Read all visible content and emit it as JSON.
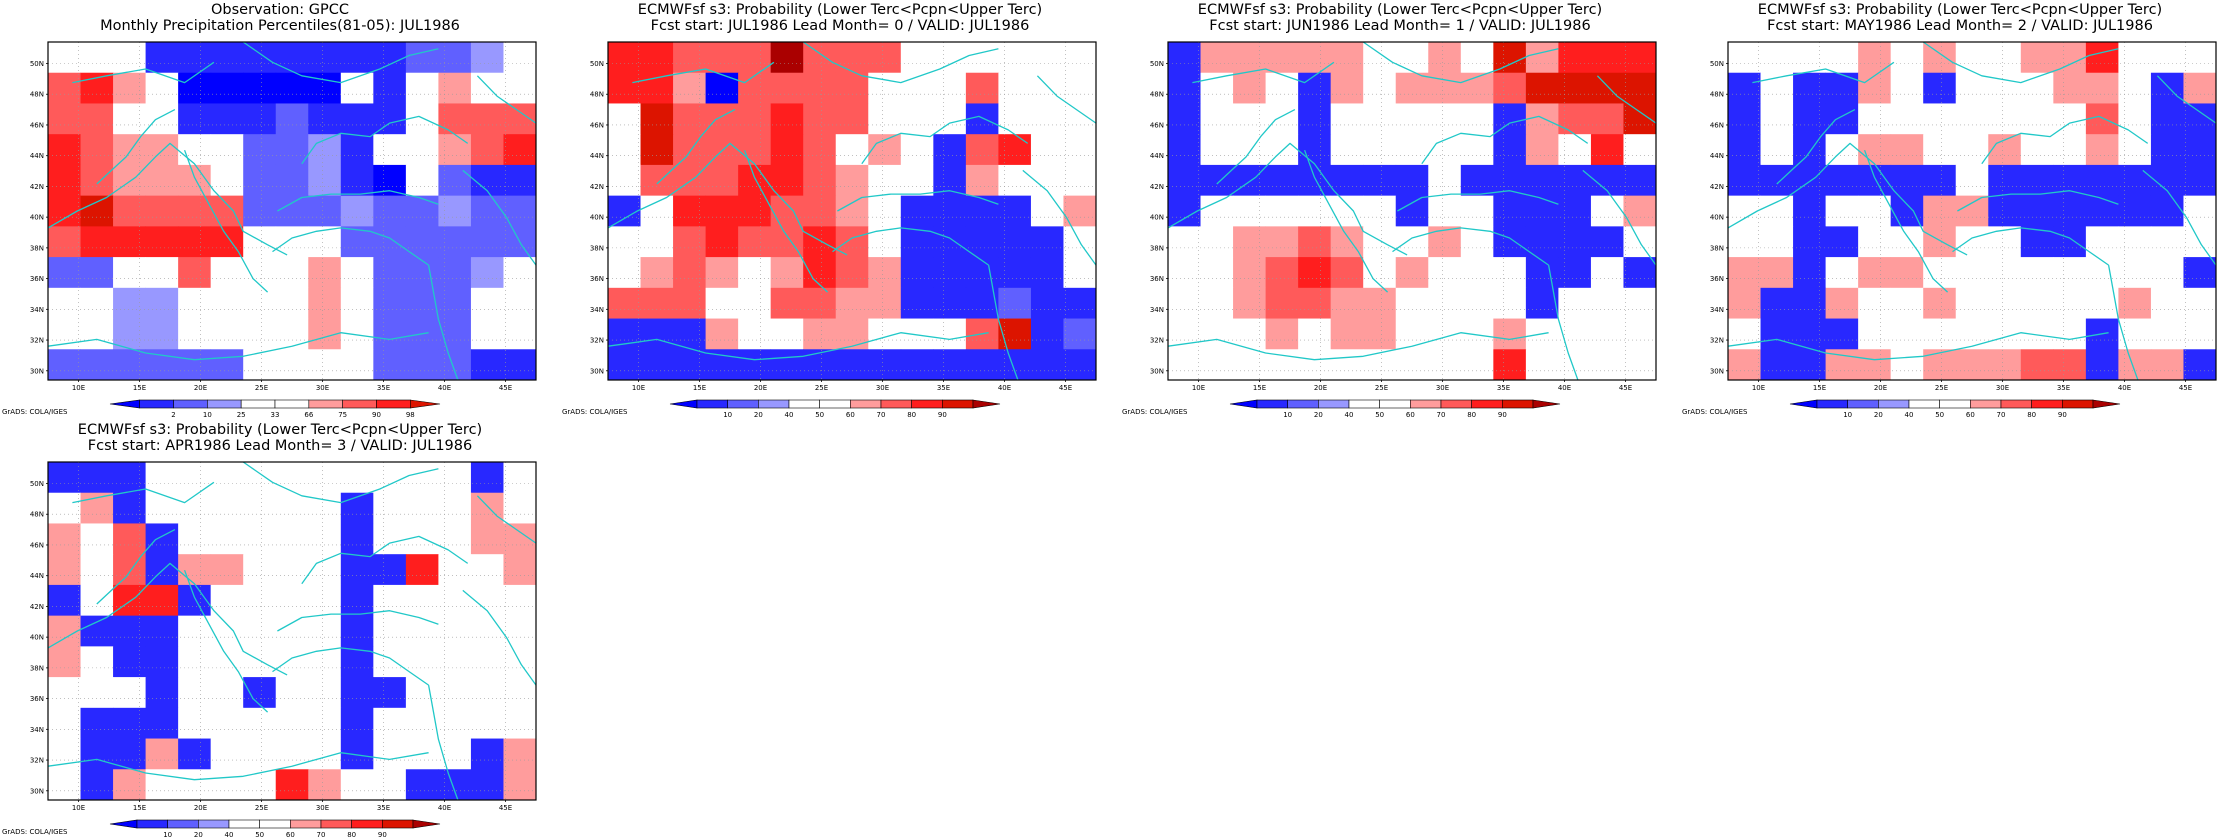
{
  "colors": {
    "coast": "#21c8c8",
    "frame": "#000000",
    "grid": "#9a9a9a",
    "scale": [
      "#0000ff",
      "#2828ff",
      "#6060ff",
      "#9898ff",
      "#ffffff",
      "#ffffff",
      "#ff9c9c",
      "#ff5a5a",
      "#ff1e1e",
      "#dc1400",
      "#aa0000"
    ],
    "cb_forecast": [
      "#0000ff",
      "#2828ff",
      "#6060ff",
      "#9898ff",
      "#ffffff",
      "#ffffff",
      "#ff9c9c",
      "#ff5a5a",
      "#ff1e1e",
      "#dc1400",
      "#aa0000"
    ],
    "cb_obs": [
      "#0000ff",
      "#2828ff",
      "#6060ff",
      "#9898ff",
      "#ffffff",
      "#ffffff",
      "#ff9c9c",
      "#ff5a5a",
      "#ff1e1e",
      "#dc1400"
    ]
  },
  "credit": "GrADS: COLA/IGES",
  "panels": [
    {
      "title_line1": "Observation: GPCC",
      "title_line2": "Monthly Precipitation Percentiles(81-05): JUL1986",
      "colorbar": {
        "kind": "obs",
        "labels": [
          "2",
          "10",
          "25",
          "33",
          "66",
          "75",
          "90",
          "98"
        ]
      },
      "chart_data": {
        "type": "heatmap",
        "x_ticks": [
          "10E",
          "15E",
          "20E",
          "25E",
          "30E",
          "35E",
          "40E",
          "45E"
        ],
        "y_ticks": [
          "30N",
          "32N",
          "34N",
          "36N",
          "38N",
          "40N",
          "42N",
          "44N",
          "46N",
          "48N",
          "50N"
        ],
        "grid": [
          [
            5,
            5,
            5,
            1,
            1,
            1,
            1,
            1,
            1,
            1,
            1,
            2,
            2,
            3,
            5
          ],
          [
            7,
            8,
            6,
            5,
            0,
            0,
            0,
            0,
            0,
            5,
            1,
            5,
            6,
            5,
            4
          ],
          [
            7,
            7,
            5,
            5,
            1,
            1,
            1,
            2,
            1,
            1,
            1,
            5,
            7,
            7,
            7
          ],
          [
            8,
            7,
            6,
            6,
            5,
            5,
            2,
            2,
            3,
            1,
            5,
            5,
            6,
            7,
            8
          ],
          [
            8,
            7,
            6,
            6,
            6,
            5,
            2,
            2,
            3,
            1,
            0,
            5,
            2,
            1,
            1
          ],
          [
            8,
            9,
            7,
            7,
            7,
            7,
            2,
            2,
            2,
            3,
            2,
            2,
            3,
            2,
            2
          ],
          [
            7,
            8,
            8,
            8,
            8,
            8,
            5,
            5,
            5,
            2,
            2,
            2,
            2,
            2,
            2
          ],
          [
            2,
            2,
            5,
            5,
            7,
            5,
            5,
            5,
            6,
            5,
            2,
            2,
            2,
            3,
            5
          ],
          [
            5,
            5,
            3,
            3,
            5,
            5,
            5,
            5,
            6,
            5,
            2,
            2,
            2,
            5,
            5
          ],
          [
            5,
            5,
            3,
            3,
            5,
            5,
            5,
            5,
            6,
            5,
            2,
            2,
            2,
            5,
            5
          ],
          [
            2,
            2,
            2,
            2,
            2,
            2,
            5,
            5,
            5,
            5,
            2,
            2,
            2,
            1,
            1
          ]
        ]
      }
    },
    {
      "title_line1": "ECMWFsf s3: Probability (Lower Terc<Pcpn<Upper Terc)",
      "title_line2": "Fcst start: JUL1986  Lead Month= 0 / VALID: JUL1986",
      "colorbar": {
        "kind": "fcst",
        "labels": [
          "10",
          "20",
          "40",
          "50",
          "60",
          "70",
          "80",
          "90"
        ]
      },
      "chart_data": {
        "type": "heatmap",
        "x_ticks": [
          "10E",
          "15E",
          "20E",
          "25E",
          "30E",
          "35E",
          "40E",
          "45E"
        ],
        "y_ticks": [
          "30N",
          "32N",
          "34N",
          "36N",
          "38N",
          "40N",
          "42N",
          "44N",
          "46N",
          "48N",
          "50N"
        ],
        "grid": [
          [
            8,
            8,
            7,
            7,
            7,
            10,
            7,
            7,
            7,
            5,
            5,
            5,
            5,
            5,
            5
          ],
          [
            8,
            8,
            6,
            0,
            7,
            7,
            7,
            7,
            5,
            5,
            5,
            7,
            5,
            5,
            5
          ],
          [
            5,
            9,
            7,
            7,
            7,
            8,
            7,
            7,
            5,
            5,
            5,
            1,
            5,
            5,
            5
          ],
          [
            5,
            9,
            7,
            7,
            7,
            8,
            7,
            5,
            6,
            5,
            1,
            7,
            8,
            5,
            5
          ],
          [
            5,
            7,
            7,
            7,
            8,
            8,
            7,
            6,
            5,
            5,
            1,
            6,
            5,
            5,
            5
          ],
          [
            1,
            5,
            8,
            8,
            8,
            7,
            7,
            6,
            5,
            1,
            1,
            1,
            1,
            5,
            6
          ],
          [
            5,
            5,
            7,
            8,
            7,
            7,
            8,
            7,
            5,
            1,
            1,
            1,
            1,
            1,
            5
          ],
          [
            5,
            6,
            7,
            6,
            5,
            6,
            8,
            7,
            6,
            1,
            1,
            1,
            1,
            1,
            5
          ],
          [
            7,
            7,
            7,
            5,
            5,
            7,
            7,
            6,
            6,
            1,
            1,
            1,
            2,
            1,
            1
          ],
          [
            1,
            1,
            1,
            6,
            5,
            5,
            6,
            6,
            5,
            5,
            5,
            7,
            9,
            1,
            2
          ],
          [
            1,
            1,
            1,
            1,
            1,
            1,
            1,
            1,
            1,
            1,
            1,
            1,
            1,
            1,
            1
          ]
        ]
      }
    },
    {
      "title_line1": "ECMWFsf s3: Probability (Lower Terc<Pcpn<Upper Terc)",
      "title_line2": "Fcst start: JUN1986  Lead Month= 1 / VALID: JUL1986",
      "colorbar": {
        "kind": "fcst",
        "labels": [
          "10",
          "20",
          "40",
          "50",
          "60",
          "70",
          "80",
          "90"
        ]
      },
      "chart_data": {
        "type": "heatmap",
        "x_ticks": [
          "10E",
          "15E",
          "20E",
          "25E",
          "30E",
          "35E",
          "40E",
          "45E"
        ],
        "y_ticks": [
          "30N",
          "32N",
          "34N",
          "36N",
          "38N",
          "40N",
          "42N",
          "44N",
          "46N",
          "48N",
          "50N"
        ],
        "grid": [
          [
            1,
            6,
            6,
            6,
            6,
            6,
            5,
            5,
            6,
            5,
            9,
            6,
            8,
            8,
            8
          ],
          [
            1,
            5,
            6,
            5,
            1,
            6,
            5,
            6,
            6,
            6,
            7,
            9,
            9,
            9,
            9
          ],
          [
            1,
            5,
            5,
            5,
            1,
            5,
            5,
            5,
            5,
            5,
            1,
            6,
            7,
            7,
            9
          ],
          [
            1,
            5,
            5,
            5,
            1,
            5,
            5,
            5,
            5,
            5,
            1,
            6,
            5,
            8,
            5
          ],
          [
            1,
            1,
            1,
            1,
            1,
            1,
            1,
            1,
            5,
            1,
            1,
            1,
            1,
            1,
            1
          ],
          [
            1,
            5,
            5,
            5,
            5,
            5,
            5,
            1,
            5,
            5,
            1,
            1,
            1,
            5,
            6
          ],
          [
            5,
            5,
            6,
            6,
            7,
            6,
            5,
            5,
            6,
            5,
            1,
            1,
            1,
            1,
            5
          ],
          [
            5,
            5,
            6,
            7,
            8,
            7,
            5,
            6,
            5,
            5,
            5,
            1,
            1,
            5,
            1
          ],
          [
            5,
            5,
            6,
            7,
            7,
            6,
            6,
            5,
            5,
            5,
            5,
            1,
            5,
            5,
            5
          ],
          [
            5,
            5,
            5,
            6,
            5,
            6,
            6,
            5,
            5,
            5,
            6,
            5,
            5,
            5,
            5
          ],
          [
            5,
            5,
            5,
            5,
            5,
            5,
            5,
            5,
            5,
            5,
            8,
            5,
            5,
            5,
            5
          ]
        ]
      }
    },
    {
      "title_line1": "ECMWFsf s3: Probability (Lower Terc<Pcpn<Upper Terc)",
      "title_line2": "Fcst start: MAY1986  Lead Month= 2 / VALID: JUL1986",
      "colorbar": {
        "kind": "fcst",
        "labels": [
          "10",
          "20",
          "40",
          "50",
          "60",
          "70",
          "80",
          "90"
        ]
      },
      "chart_data": {
        "type": "heatmap",
        "x_ticks": [
          "10E",
          "15E",
          "20E",
          "25E",
          "30E",
          "35E",
          "40E",
          "45E"
        ],
        "y_ticks": [
          "30N",
          "32N",
          "34N",
          "36N",
          "38N",
          "40N",
          "42N",
          "44N",
          "46N",
          "48N",
          "50N"
        ],
        "grid": [
          [
            5,
            5,
            5,
            5,
            6,
            5,
            6,
            5,
            5,
            6,
            6,
            8,
            5,
            5,
            5
          ],
          [
            1,
            5,
            1,
            1,
            6,
            5,
            1,
            5,
            5,
            5,
            6,
            6,
            5,
            1,
            6
          ],
          [
            1,
            5,
            1,
            1,
            5,
            5,
            5,
            5,
            5,
            5,
            5,
            7,
            5,
            1,
            1
          ],
          [
            1,
            5,
            1,
            5,
            6,
            6,
            5,
            5,
            6,
            5,
            5,
            6,
            5,
            1,
            1
          ],
          [
            1,
            1,
            1,
            1,
            1,
            1,
            1,
            5,
            1,
            1,
            1,
            1,
            1,
            1,
            1
          ],
          [
            5,
            5,
            1,
            5,
            5,
            1,
            6,
            6,
            1,
            1,
            1,
            1,
            1,
            1,
            5
          ],
          [
            5,
            5,
            1,
            1,
            5,
            5,
            6,
            5,
            5,
            1,
            1,
            5,
            5,
            5,
            5
          ],
          [
            6,
            6,
            1,
            5,
            6,
            6,
            5,
            5,
            5,
            5,
            5,
            5,
            5,
            5,
            1
          ],
          [
            6,
            1,
            1,
            6,
            5,
            5,
            6,
            5,
            5,
            5,
            5,
            5,
            6,
            5,
            5
          ],
          [
            5,
            1,
            1,
            1,
            5,
            5,
            5,
            5,
            5,
            5,
            5,
            1,
            5,
            5,
            5
          ],
          [
            6,
            1,
            1,
            6,
            6,
            5,
            6,
            6,
            6,
            7,
            7,
            1,
            6,
            6,
            1
          ]
        ]
      }
    },
    {
      "title_line1": "ECMWFsf s3: Probability (Lower Terc<Pcpn<Upper Terc)",
      "title_line2": "Fcst start: APR1986  Lead Month= 3 / VALID: JUL1986",
      "colorbar": {
        "kind": "fcst",
        "labels": [
          "10",
          "20",
          "40",
          "50",
          "60",
          "70",
          "80",
          "90"
        ]
      },
      "chart_data": {
        "type": "heatmap",
        "x_ticks": [
          "10E",
          "15E",
          "20E",
          "25E",
          "30E",
          "35E",
          "40E",
          "45E"
        ],
        "y_ticks": [
          "30N",
          "32N",
          "34N",
          "36N",
          "38N",
          "40N",
          "42N",
          "44N",
          "46N",
          "48N",
          "50N"
        ],
        "grid": [
          [
            1,
            1,
            1,
            5,
            5,
            5,
            5,
            5,
            5,
            5,
            5,
            5,
            5,
            1,
            5
          ],
          [
            5,
            6,
            1,
            5,
            5,
            5,
            5,
            5,
            5,
            1,
            5,
            5,
            5,
            6,
            5
          ],
          [
            6,
            5,
            7,
            1,
            5,
            5,
            5,
            5,
            5,
            1,
            5,
            5,
            5,
            6,
            6
          ],
          [
            6,
            5,
            7,
            1,
            6,
            6,
            5,
            5,
            5,
            1,
            1,
            8,
            5,
            5,
            6
          ],
          [
            1,
            5,
            8,
            8,
            1,
            5,
            5,
            5,
            5,
            1,
            5,
            5,
            5,
            5,
            5
          ],
          [
            6,
            1,
            1,
            1,
            5,
            5,
            5,
            5,
            5,
            1,
            5,
            5,
            5,
            5,
            5
          ],
          [
            6,
            5,
            1,
            1,
            5,
            5,
            5,
            5,
            5,
            1,
            5,
            5,
            5,
            5,
            5
          ],
          [
            5,
            5,
            5,
            1,
            5,
            5,
            1,
            5,
            5,
            1,
            1,
            5,
            5,
            5,
            5
          ],
          [
            5,
            1,
            1,
            1,
            5,
            5,
            5,
            5,
            5,
            1,
            5,
            5,
            5,
            5,
            5
          ],
          [
            5,
            1,
            1,
            6,
            1,
            5,
            5,
            5,
            5,
            1,
            5,
            5,
            5,
            1,
            6
          ],
          [
            5,
            1,
            6,
            5,
            5,
            5,
            5,
            8,
            6,
            5,
            5,
            1,
            1,
            1,
            6
          ]
        ]
      }
    }
  ]
}
